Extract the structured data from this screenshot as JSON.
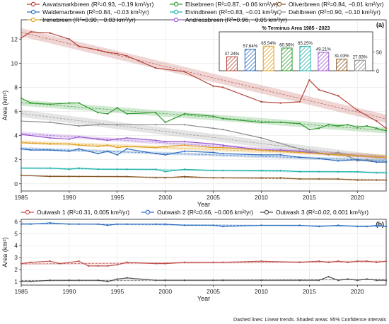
{
  "colors": {
    "Aavatsmarkbreen": "#b5443a",
    "Elisebreen": "#2e9a2e",
    "Oliverbreen": "#8b5a2b",
    "Waldemarbreen": "#2f6fbf",
    "Eivindbreen": "#20b2aa",
    "Dahlbreen": "#8a8a8a",
    "Irenebreen": "#e0a020",
    "Andreasbreen": "#9b59d0",
    "Outwash 1": "#c0504d",
    "Outwash 2": "#2f6fbf",
    "Outwash 3": "#505050"
  },
  "footnote": "Dashed lines: Linear trends. Shaded areas: 95% Confidence intervals",
  "chart_data": [
    {
      "type": "line",
      "panel_label": "(a)",
      "xlabel": "Year",
      "ylabel": "Area (km²)",
      "xlim": [
        1985,
        2023
      ],
      "ylim": [
        -0.6,
        13.6
      ],
      "xticks": [
        1985,
        1990,
        1995,
        2000,
        2005,
        2010,
        2015,
        2020
      ],
      "yticks": [
        0,
        2,
        4,
        6,
        8,
        10,
        12
      ],
      "grid": true,
      "legend_position": "top",
      "legend": [
        "Aavatsmarkbreen (R²=0.93, −0.19 km²/yr)",
        "Elisebreen (R²=0.87, −0.06 km²/yr)",
        "Oliverbreen (R²=0.84, −0.01 km²/yr)",
        "Waldemarbreen (R²=0.84, −0.03 km²/yr)",
        "Eivindbreen (R²=0.83, −0.01 km²/yr)",
        "Dahlbreen (R²=0.90, −0.10 km²/yr)",
        "Irenebreen (R²=0.90, −0.03 km²/yr)",
        "Andreasbreen (R²=0.96, −0.05 km²/yr)"
      ],
      "series": [
        {
          "name": "Aavatsmarkbreen",
          "ci": 0.35,
          "x": [
            1985,
            1986,
            1988,
            1990,
            1991,
            1993,
            1994,
            1995,
            1996,
            1999,
            2002,
            2005,
            2006,
            2010,
            2012,
            2014,
            2015,
            2016,
            2018,
            2020,
            2022,
            2023
          ],
          "values": [
            12.1,
            12.6,
            12.5,
            12.0,
            11.4,
            11.1,
            10.9,
            10.8,
            10.6,
            9.6,
            9.3,
            8.1,
            8.0,
            6.8,
            6.7,
            6.8,
            8.6,
            7.8,
            7.3,
            6.1,
            5.2,
            4.6
          ]
        },
        {
          "name": "Elisebreen",
          "ci": 0.25,
          "x": [
            1985,
            1986,
            1988,
            1990,
            1991,
            1993,
            1994,
            1995,
            1996,
            1999,
            2000,
            2002,
            2005,
            2006,
            2010,
            2012,
            2014,
            2015,
            2016,
            2017,
            2018,
            2019,
            2020,
            2021,
            2022,
            2023
          ],
          "values": [
            7.1,
            6.7,
            6.6,
            6.7,
            6.7,
            5.9,
            5.8,
            6.3,
            5.8,
            5.9,
            5.1,
            5.8,
            5.6,
            5.4,
            5.1,
            5.1,
            5.0,
            4.5,
            4.6,
            4.9,
            4.8,
            4.9,
            4.7,
            4.8,
            4.6,
            4.4
          ]
        },
        {
          "name": "Dahlbreen",
          "ci": 0.3,
          "x": [
            1985,
            1988,
            1991,
            1993,
            1995,
            1999,
            2002,
            2005,
            2006,
            2010,
            2014,
            2017,
            2018,
            2019,
            2020,
            2021,
            2022,
            2023
          ],
          "values": [
            5.2,
            5.1,
            4.8,
            4.9,
            4.9,
            4.9,
            4.9,
            4.6,
            4.5,
            3.8,
            2.9,
            2.4,
            2.6,
            2.3,
            1.9,
            2.0,
            1.8,
            1.8
          ]
        },
        {
          "name": "Andreasbreen",
          "ci": 0.15,
          "x": [
            1985,
            1988,
            1990,
            1991,
            1993,
            1994,
            1995,
            1996,
            1999,
            2000,
            2002,
            2005,
            2006,
            2010,
            2012,
            2014,
            2015,
            2016,
            2018,
            2020,
            2022,
            2023
          ],
          "values": [
            4.1,
            3.8,
            3.7,
            3.9,
            3.7,
            3.6,
            3.7,
            3.8,
            3.6,
            3.5,
            3.5,
            3.3,
            3.2,
            2.8,
            2.8,
            2.7,
            2.6,
            2.5,
            2.4,
            2.3,
            2.2,
            2.2
          ]
        },
        {
          "name": "Irenebreen",
          "ci": 0.15,
          "x": [
            1985,
            1988,
            1990,
            1991,
            1993,
            1994,
            1995,
            1996,
            1999,
            2000,
            2002,
            2005,
            2006,
            2010,
            2012,
            2014,
            2016,
            2018,
            2020,
            2022,
            2023
          ],
          "values": [
            3.4,
            3.3,
            3.3,
            3.2,
            3.1,
            3.2,
            3.0,
            3.1,
            3.0,
            3.1,
            3.2,
            3.0,
            3.0,
            2.8,
            2.7,
            2.6,
            2.5,
            2.4,
            2.3,
            2.2,
            2.2
          ]
        },
        {
          "name": "Waldemarbreen",
          "ci": 0.12,
          "x": [
            1985,
            1986,
            1988,
            1990,
            1991,
            1993,
            1994,
            1995,
            1996,
            1999,
            2000,
            2002,
            2005,
            2006,
            2010,
            2012,
            2014,
            2016,
            2018,
            2020,
            2022,
            2023
          ],
          "values": [
            2.9,
            2.8,
            2.8,
            2.7,
            2.9,
            2.5,
            2.7,
            2.4,
            2.9,
            2.5,
            2.4,
            2.7,
            2.6,
            2.5,
            2.4,
            2.4,
            2.2,
            2.1,
            1.9,
            2.0,
            1.8,
            1.8
          ]
        },
        {
          "name": "Eivindbreen",
          "ci": 0.08,
          "x": [
            1985,
            1988,
            1990,
            1991,
            1993,
            1995,
            1996,
            1999,
            2000,
            2002,
            2005,
            2006,
            2010,
            2012,
            2014,
            2016,
            2018,
            2020,
            2022,
            2023
          ],
          "values": [
            1.3,
            1.3,
            1.2,
            1.3,
            1.2,
            1.2,
            1.2,
            1.2,
            1.0,
            1.2,
            1.1,
            1.1,
            1.1,
            1.1,
            1.0,
            1.0,
            1.0,
            1.0,
            0.9,
            0.9
          ]
        },
        {
          "name": "Oliverbreen",
          "ci": 0.06,
          "x": [
            1985,
            1988,
            1990,
            1991,
            1993,
            1995,
            1996,
            1999,
            2000,
            2002,
            2005,
            2006,
            2010,
            2012,
            2014,
            2016,
            2018,
            2020,
            2022,
            2023
          ],
          "values": [
            0.7,
            0.6,
            0.6,
            0.6,
            0.6,
            0.6,
            0.6,
            0.5,
            0.5,
            0.6,
            0.5,
            0.5,
            0.5,
            0.5,
            0.4,
            0.4,
            0.4,
            0.3,
            0.3,
            0.3
          ]
        }
      ]
    },
    {
      "type": "bar",
      "title": "% Terminus Area 1985 - 2023",
      "ylim": [
        0,
        100
      ],
      "yticks": [
        0,
        50
      ],
      "categories": [
        "Aavatsmarkbreen",
        "Waldemarbreen",
        "Irenebreen",
        "Elisebreen",
        "Eivindbreen",
        "Andreasbreen",
        "Oliverbreen",
        "Dahlbreen"
      ],
      "value_labels": [
        "37.24%",
        "57.64%",
        "65.54%",
        "60.56%",
        "65.25%",
        "49.21%",
        "31.03%",
        "27.93%"
      ],
      "values": [
        37.24,
        57.64,
        65.54,
        60.56,
        65.25,
        49.21,
        31.03,
        27.93
      ]
    },
    {
      "type": "line",
      "panel_label": "(b)",
      "xlabel": "Year",
      "ylabel": "Area (km²)",
      "xlim": [
        1985,
        2023
      ],
      "ylim": [
        0.7,
        6.2
      ],
      "xticks": [
        1985,
        1990,
        1995,
        2000,
        2005,
        2010,
        2015,
        2020
      ],
      "yticks": [
        1,
        2,
        3,
        4,
        5,
        6
      ],
      "grid": true,
      "legend_position": "top",
      "legend": [
        "Outwash 1 (R²=0.31, 0.005 km²/yr)",
        "Outwash 2 (R²=0.66, −0.006 km²/yr)",
        "Outwash 3 (R²=0.02, 0.001 km²/yr)"
      ],
      "series": [
        {
          "name": "Outwash 1",
          "ci": 0.08,
          "x": [
            1985,
            1986,
            1988,
            1989,
            1991,
            1992,
            1993,
            1994,
            1995,
            1996,
            1999,
            2000,
            2002,
            2005,
            2006,
            2010,
            2014,
            2016,
            2017,
            2018,
            2019,
            2020,
            2021,
            2022,
            2023
          ],
          "values": [
            2.5,
            2.6,
            2.7,
            2.5,
            2.7,
            2.3,
            2.3,
            2.3,
            2.4,
            2.6,
            2.5,
            2.5,
            2.6,
            2.6,
            2.6,
            2.7,
            2.6,
            2.7,
            2.6,
            2.7,
            2.6,
            2.7,
            2.7,
            2.6,
            2.7
          ]
        },
        {
          "name": "Outwash 2",
          "ci": 0.06,
          "x": [
            1985,
            1986,
            1988,
            1990,
            1991,
            1993,
            1994,
            1995,
            1996,
            1999,
            2000,
            2002,
            2005,
            2006,
            2010,
            2014,
            2016,
            2018,
            2020,
            2021,
            2022,
            2023
          ],
          "values": [
            5.8,
            5.8,
            5.9,
            5.8,
            5.8,
            5.8,
            5.7,
            5.8,
            5.8,
            5.8,
            5.8,
            5.7,
            5.7,
            5.6,
            5.7,
            5.7,
            5.6,
            5.7,
            5.6,
            5.6,
            5.7,
            5.6
          ]
        },
        {
          "name": "Outwash 3",
          "ci": 0.05,
          "x": [
            1985,
            1986,
            1988,
            1990,
            1991,
            1993,
            1994,
            1995,
            1996,
            1999,
            2000,
            2002,
            2005,
            2006,
            2010,
            2014,
            2016,
            2017,
            2018,
            2019,
            2020,
            2021,
            2022,
            2023
          ],
          "values": [
            1.0,
            1.0,
            1.1,
            1.1,
            1.1,
            1.1,
            1.0,
            1.2,
            1.3,
            1.1,
            1.1,
            1.1,
            1.1,
            1.1,
            1.1,
            1.1,
            1.1,
            1.4,
            1.1,
            1.2,
            1.1,
            1.2,
            1.1,
            1.1
          ]
        }
      ]
    }
  ]
}
